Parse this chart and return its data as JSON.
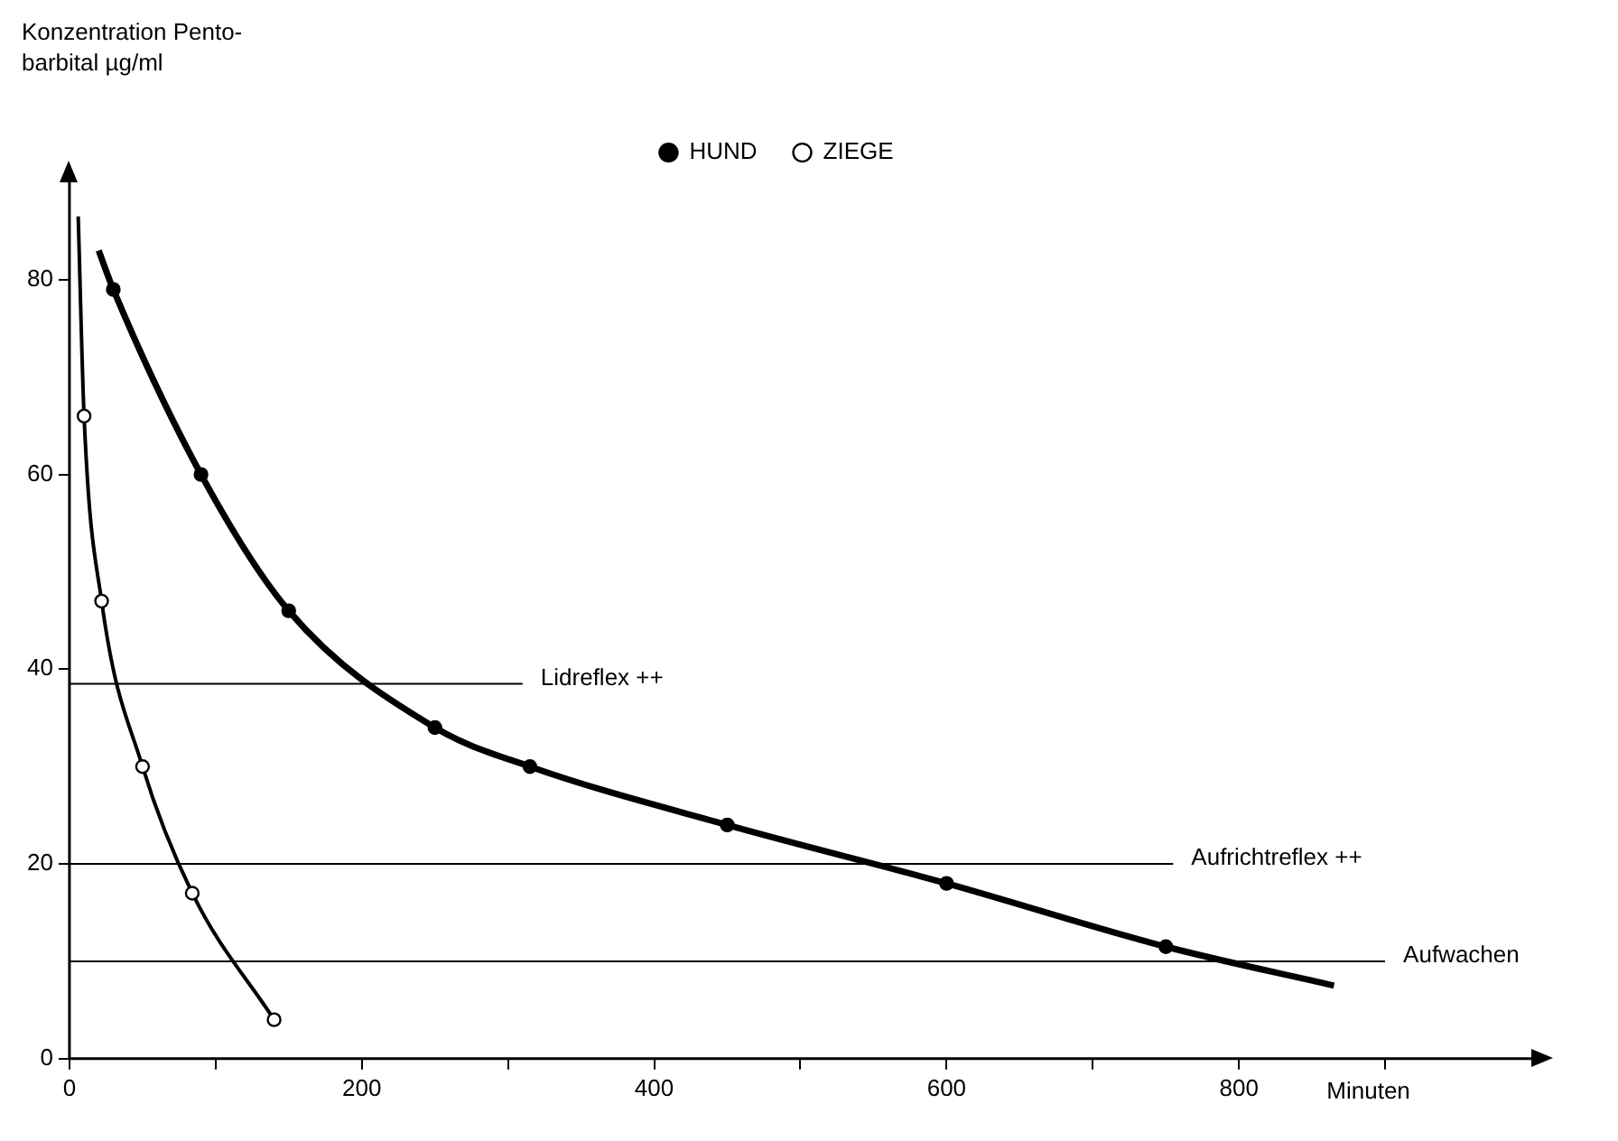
{
  "chart_data": {
    "type": "line",
    "xlabel": "Minuten",
    "ylabel": "Konzentration Pento-\nbarbital µg/ml",
    "series": [
      {
        "name": "HUND",
        "color": "#000000",
        "x": [
          20,
          30,
          90,
          150,
          250,
          315,
          450,
          600,
          750,
          865
        ],
        "values": [
          83,
          79,
          60,
          46,
          34,
          30,
          24,
          18,
          11.5,
          7.5
        ]
      },
      {
        "name": "ZIEGE",
        "color": "#000000",
        "x": [
          6,
          10,
          22,
          50,
          84,
          140
        ],
        "values": [
          86.5,
          66,
          47,
          30,
          17,
          4
        ]
      }
    ],
    "xlim": [
      0,
      1000
    ],
    "xticks": [
      0,
      {
        "value": 100,
        "label": null
      },
      200,
      {
        "value": 300,
        "label": null
      },
      400,
      {
        "value": 500,
        "label": null
      },
      600,
      {
        "value": 700,
        "label": null
      },
      800,
      {
        "value": 900,
        "label": null
      }
    ],
    "ylim": [
      0,
      90
    ],
    "yticks": [
      0,
      20,
      40,
      60,
      80
    ],
    "ref_lines": [
      {
        "axis": "y",
        "value": 38.5,
        "label": "Lidreflex ++"
      },
      {
        "axis": "y",
        "value": 20,
        "label": "Aufrichtreflex ++"
      },
      {
        "axis": "y",
        "value": 10,
        "label": "Aufwachen"
      }
    ],
    "legend": "top",
    "marker": "circle",
    "line_style": "solid",
    "grid": false
  }
}
